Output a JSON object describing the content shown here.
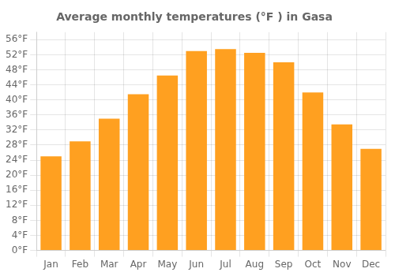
{
  "chart_data": {
    "type": "bar",
    "title": "Average monthly temperatures (°F ) in Gasa",
    "categories": [
      "Jan",
      "Feb",
      "Mar",
      "Apr",
      "May",
      "Jun",
      "Jul",
      "Aug",
      "Sep",
      "Oct",
      "Nov",
      "Dec"
    ],
    "values": [
      25,
      29,
      35,
      41.5,
      46.5,
      53,
      53.5,
      52.5,
      50,
      42,
      33.5,
      27
    ],
    "color": "#FFA020",
    "ylim": [
      0,
      58
    ],
    "yticks": [
      {
        "value": 0,
        "label": "0°F"
      },
      {
        "value": 4,
        "label": "4°F"
      },
      {
        "value": 8,
        "label": "8°F"
      },
      {
        "value": 12,
        "label": "12°F"
      },
      {
        "value": 16,
        "label": "16°F"
      },
      {
        "value": 20,
        "label": "20°F"
      },
      {
        "value": 24,
        "label": "24°F"
      },
      {
        "value": 28,
        "label": "28°F"
      },
      {
        "value": 32,
        "label": "32°F"
      },
      {
        "value": 36,
        "label": "36°F"
      },
      {
        "value": 40,
        "label": "40°F"
      },
      {
        "value": 44,
        "label": "44°F"
      },
      {
        "value": 48,
        "label": "48°F"
      },
      {
        "value": 52,
        "label": "52°F"
      },
      {
        "value": 56,
        "label": "56°F"
      }
    ],
    "grid": true
  }
}
